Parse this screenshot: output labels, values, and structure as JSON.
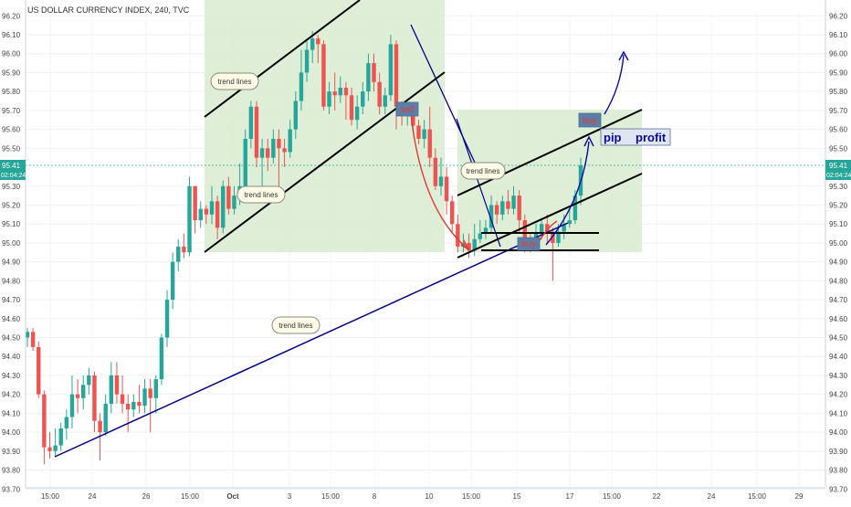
{
  "title": "US DOLLAR CURRENCY INDEX, 240, TVC",
  "colors": {
    "up": "#26a69a",
    "down": "#ef5350",
    "channel_fill": "#d9ecd0",
    "trend_line": "#000000",
    "long_trend": "#00008b",
    "arrow_red": "#e53935",
    "arrow_blue": "#0a0aa0",
    "price_line": "#26a69a",
    "label_box": "#5b7fa6",
    "label_text": "#e53935",
    "pip_box": "#dfe6f1",
    "pip_text": "#0a0aa0"
  },
  "chart_data": {
    "type": "candlestick",
    "ylim": [
      93.7,
      96.25
    ],
    "y_ticks": [
      "96.20",
      "96.10",
      "96.00",
      "95.90",
      "95.80",
      "95.70",
      "95.60",
      "95.50",
      "95.40",
      "95.30",
      "95.20",
      "95.10",
      "95.00",
      "94.90",
      "94.80",
      "94.70",
      "94.60",
      "94.50",
      "94.40",
      "94.30",
      "94.20",
      "94.10",
      "94.00",
      "93.90",
      "93.80",
      "93.70"
    ],
    "x_ticks": [
      "15:00",
      "24",
      "15:00",
      "26",
      "15:00",
      "Oct",
      "3",
      "15:00",
      "8",
      "15:00",
      "10",
      "15:00",
      "15",
      "15:00",
      "17",
      "15:00",
      "22",
      "24",
      "15:00",
      "29"
    ],
    "current_price": "95.41",
    "countdown": "02:04:24",
    "grid": true,
    "candles": [
      [
        94.5,
        94.53,
        94.45,
        94.55
      ],
      [
        94.53,
        94.45,
        94.43,
        94.55
      ],
      [
        94.45,
        94.2,
        94.18,
        94.48
      ],
      [
        94.2,
        93.92,
        93.83,
        94.22
      ],
      [
        93.92,
        93.9,
        93.86,
        94.0
      ],
      [
        93.9,
        93.93,
        93.87,
        94.02
      ],
      [
        93.93,
        94.02,
        93.9,
        94.05
      ],
      [
        94.02,
        94.08,
        93.96,
        94.12
      ],
      [
        94.08,
        94.2,
        94.02,
        94.3
      ],
      [
        94.2,
        94.18,
        94.1,
        94.28
      ],
      [
        94.18,
        94.25,
        94.12,
        94.3
      ],
      [
        94.25,
        94.3,
        94.2,
        94.34
      ],
      [
        94.3,
        94.06,
        94.0,
        94.32
      ],
      [
        94.06,
        94.0,
        93.85,
        94.1
      ],
      [
        94.0,
        94.15,
        93.98,
        94.2
      ],
      [
        94.15,
        94.3,
        94.1,
        94.37
      ],
      [
        94.3,
        94.2,
        94.15,
        94.37
      ],
      [
        94.2,
        94.15,
        94.1,
        94.3
      ],
      [
        94.15,
        94.12,
        94.0,
        94.2
      ],
      [
        94.12,
        94.16,
        94.08,
        94.2
      ],
      [
        94.16,
        94.14,
        94.1,
        94.25
      ],
      [
        94.14,
        94.23,
        94.1,
        94.28
      ],
      [
        94.23,
        94.18,
        94.0,
        94.28
      ],
      [
        94.18,
        94.28,
        94.1,
        94.3
      ],
      [
        94.28,
        94.5,
        94.25,
        94.52
      ],
      [
        94.5,
        94.7,
        94.45,
        94.75
      ],
      [
        94.7,
        94.9,
        94.65,
        94.95
      ],
      [
        94.9,
        94.98,
        94.85,
        95.02
      ],
      [
        94.98,
        94.95,
        94.92,
        95.05
      ],
      [
        94.95,
        95.3,
        94.93,
        95.35
      ],
      [
        95.3,
        95.12,
        95.05,
        95.3
      ],
      [
        95.12,
        95.18,
        95.08,
        95.22
      ],
      [
        95.18,
        95.15,
        95.1,
        95.2
      ],
      [
        95.15,
        95.22,
        95.1,
        95.3
      ],
      [
        95.22,
        95.08,
        95.02,
        95.25
      ],
      [
        95.08,
        95.3,
        95.05,
        95.33
      ],
      [
        95.3,
        95.18,
        95.15,
        95.35
      ],
      [
        95.18,
        95.25,
        95.15,
        95.3
      ],
      [
        95.25,
        95.3,
        95.2,
        95.42
      ],
      [
        95.3,
        95.55,
        95.25,
        95.6
      ],
      [
        95.55,
        95.72,
        95.5,
        95.75
      ],
      [
        95.72,
        95.45,
        95.4,
        95.75
      ],
      [
        95.45,
        95.5,
        95.3,
        95.55
      ],
      [
        95.5,
        95.45,
        95.38,
        95.55
      ],
      [
        95.45,
        95.55,
        95.42,
        95.6
      ],
      [
        95.55,
        95.5,
        95.3,
        95.6
      ],
      [
        95.5,
        95.48,
        95.4,
        95.55
      ],
      [
        95.48,
        95.6,
        95.45,
        95.65
      ],
      [
        95.6,
        95.75,
        95.55,
        95.8
      ],
      [
        95.75,
        95.9,
        95.7,
        96.02
      ],
      [
        95.9,
        96.02,
        95.85,
        96.08
      ],
      [
        96.02,
        96.08,
        95.95,
        96.12
      ],
      [
        96.08,
        96.05,
        95.95,
        96.1
      ],
      [
        96.05,
        95.72,
        95.7,
        96.07
      ],
      [
        95.72,
        95.8,
        95.68,
        95.85
      ],
      [
        95.8,
        95.78,
        95.7,
        95.9
      ],
      [
        95.78,
        95.82,
        95.74,
        95.88
      ],
      [
        95.82,
        95.78,
        95.65,
        95.85
      ],
      [
        95.78,
        95.65,
        95.62,
        95.82
      ],
      [
        95.65,
        95.72,
        95.6,
        95.78
      ],
      [
        95.72,
        95.8,
        95.68,
        95.85
      ],
      [
        95.8,
        95.95,
        95.75,
        96.0
      ],
      [
        95.95,
        95.85,
        95.8,
        96.0
      ],
      [
        95.85,
        95.72,
        95.68,
        95.9
      ],
      [
        95.72,
        95.78,
        95.68,
        95.82
      ],
      [
        95.78,
        96.05,
        95.75,
        96.1
      ],
      [
        96.05,
        95.72,
        95.6,
        96.07
      ],
      [
        95.72,
        95.68,
        95.62,
        95.75
      ],
      [
        95.68,
        95.7,
        95.62,
        95.72
      ],
      [
        95.7,
        95.62,
        95.58,
        95.72
      ],
      [
        95.62,
        95.55,
        95.52,
        95.65
      ],
      [
        95.55,
        95.6,
        95.5,
        95.65
      ],
      [
        95.6,
        95.45,
        95.4,
        95.72
      ],
      [
        95.45,
        95.3,
        95.28,
        95.5
      ],
      [
        95.3,
        95.35,
        95.25,
        95.45
      ],
      [
        95.35,
        95.22,
        95.15,
        95.4
      ],
      [
        95.22,
        95.1,
        95.05,
        95.25
      ],
      [
        95.1,
        94.98,
        94.95,
        95.15
      ],
      [
        94.98,
        95.0,
        94.95,
        95.05
      ],
      [
        95.0,
        94.96,
        94.92,
        95.05
      ],
      [
        94.96,
        95.02,
        94.93,
        95.1
      ],
      [
        95.02,
        95.05,
        95.0,
        95.12
      ],
      [
        95.05,
        95.08,
        95.02,
        95.12
      ],
      [
        95.08,
        95.2,
        95.05,
        95.25
      ],
      [
        95.2,
        95.15,
        95.1,
        95.22
      ],
      [
        95.15,
        95.22,
        95.12,
        95.25
      ],
      [
        95.22,
        95.18,
        95.15,
        95.28
      ],
      [
        95.18,
        95.25,
        95.15,
        95.3
      ],
      [
        95.25,
        95.12,
        95.05,
        95.28
      ],
      [
        95.12,
        95.02,
        94.95,
        95.15
      ],
      [
        95.02,
        95.0,
        94.95,
        95.05
      ],
      [
        95.0,
        95.05,
        94.98,
        95.1
      ],
      [
        95.05,
        95.1,
        95.02,
        95.12
      ],
      [
        95.1,
        95.06,
        95.0,
        95.15
      ],
      [
        95.06,
        95.0,
        94.8,
        95.08
      ],
      [
        95.0,
        95.06,
        94.98,
        95.1
      ],
      [
        95.06,
        95.1,
        95.02,
        95.15
      ],
      [
        95.1,
        95.12,
        95.08,
        95.18
      ],
      [
        95.12,
        95.25,
        95.1,
        95.28
      ],
      [
        95.25,
        95.41,
        95.2,
        95.45
      ]
    ],
    "annotations": {
      "trend_lines": [
        "trend lines",
        "trend lines",
        "trend lines",
        "trend lines"
      ],
      "sell": "sell",
      "buy_upper": "buy",
      "buy_lower": "buy",
      "pip": "pip",
      "profit": "profit"
    }
  }
}
